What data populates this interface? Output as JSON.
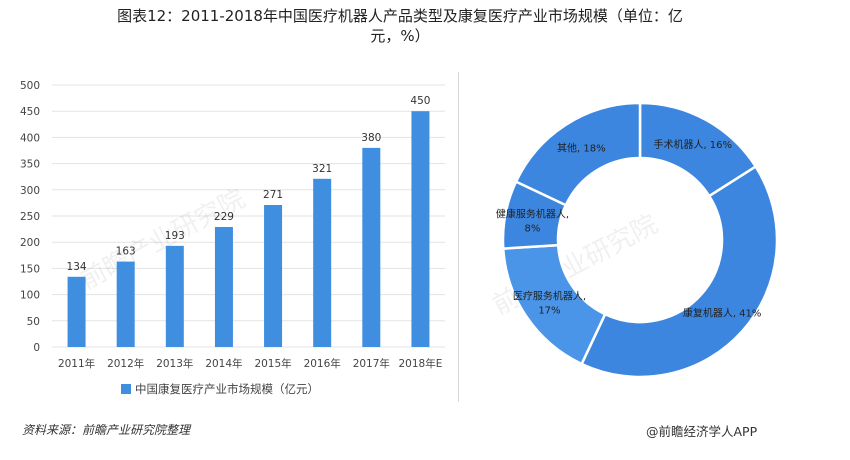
{
  "title_line1": "图表12：2011-2018年中国医疗机器人产品类型及康复医疗产业市场规模（单位：亿",
  "title_line2": "元，%）",
  "source_text": "资料来源：前瞻产业研究院整理",
  "brand_text": "@前瞻经济学人APP",
  "watermark_text": "前瞻产业研究院",
  "colors": {
    "bar": "#3f8ee0",
    "donut": [
      "#3c86e0",
      "#3c86e0",
      "#4a95e8",
      "#3c86e0",
      "#3c86e0"
    ],
    "separator": "#ffffff",
    "axis_text": "#444444",
    "grid": "#e3e3e3"
  },
  "chart_data": [
    {
      "type": "bar",
      "categories": [
        "2011年",
        "2012年",
        "2013年",
        "2014年",
        "2015年",
        "2016年",
        "2017年",
        "2018年E"
      ],
      "values": [
        134,
        163,
        193,
        229,
        271,
        321,
        380,
        450
      ],
      "ylim": [
        0,
        500
      ],
      "yticks": [
        0,
        50,
        100,
        150,
        200,
        250,
        300,
        350,
        400,
        450,
        500
      ],
      "legend": "中国康复医疗产业市场规模（亿元）",
      "grid": true
    },
    {
      "type": "pie",
      "donut": true,
      "slices": [
        {
          "label": "手术机器人",
          "value": 16,
          "label_text": "手术机器人, 16%"
        },
        {
          "label": "康复机器人",
          "value": 41,
          "label_text": "康复机器人, 41%"
        },
        {
          "label": "医疗服务机器人",
          "value": 17,
          "label_text": "医疗服务机器人,",
          "label_text2": "17%"
        },
        {
          "label": "健康服务机器人",
          "value": 8,
          "label_text": "健康服务机器人,",
          "label_text2": "8%"
        },
        {
          "label": "其他",
          "value": 18,
          "label_text": "其他, 18%"
        }
      ]
    }
  ]
}
